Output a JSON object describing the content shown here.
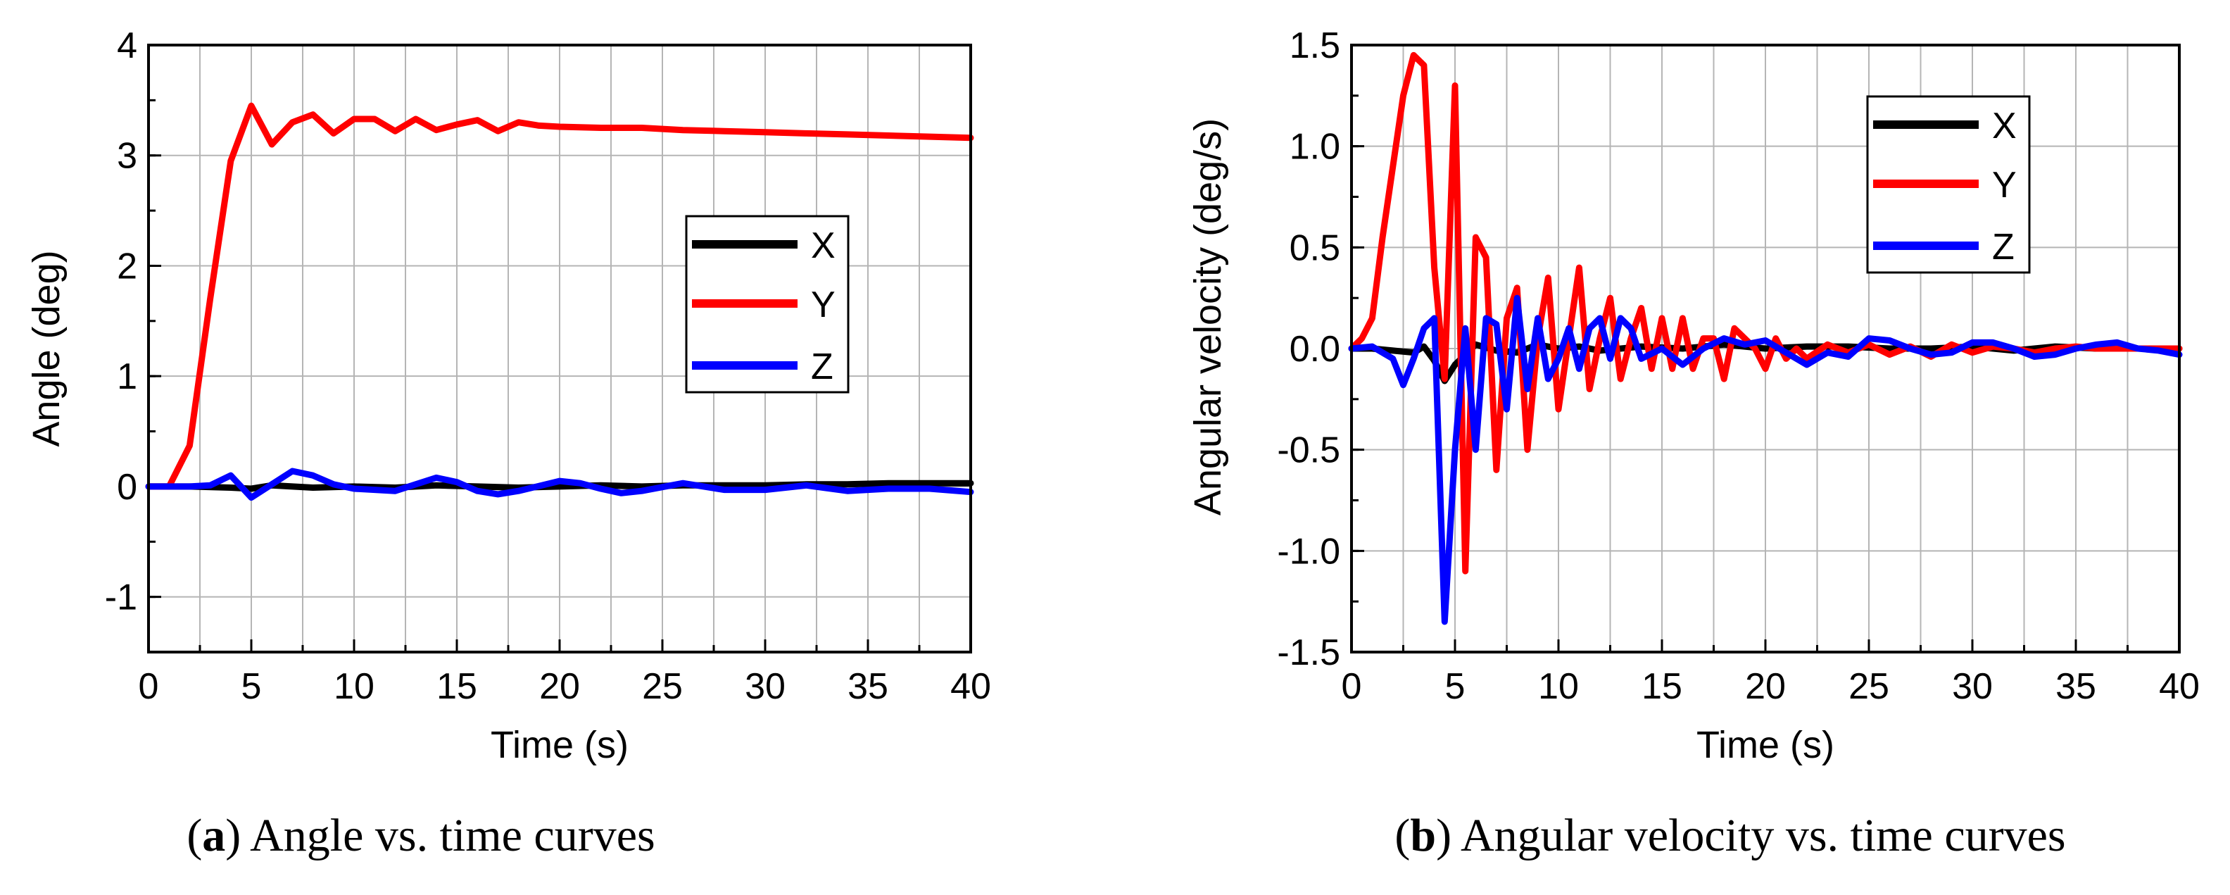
{
  "chart_data": [
    {
      "type": "line",
      "panel_label": "a",
      "caption": "Angle vs. time curves",
      "title": "",
      "xlabel": "Time (s)",
      "ylabel": "Angle (deg)",
      "xlim": [
        0,
        40
      ],
      "ylim": [
        -1.5,
        4
      ],
      "xticks": [
        0,
        5,
        10,
        15,
        20,
        25,
        30,
        35,
        40
      ],
      "xtick_labels": [
        "0",
        "5",
        "10",
        "15",
        "20",
        "25",
        "30",
        "35",
        "40"
      ],
      "yticks": [
        -1,
        0,
        1,
        2,
        3,
        4
      ],
      "ytick_labels": [
        "-1",
        "0",
        "1",
        "2",
        "3",
        "4"
      ],
      "grid": true,
      "legend_position": "center-right",
      "series": [
        {
          "name": "X",
          "color": "#000000",
          "x": [
            0,
            2,
            4,
            5,
            6,
            8,
            10,
            12,
            14,
            16,
            18,
            20,
            22,
            24,
            26,
            28,
            30,
            32,
            34,
            36,
            38,
            40
          ],
          "y": [
            0,
            0,
            -0.01,
            -0.02,
            0.01,
            -0.01,
            0,
            -0.01,
            0.01,
            0,
            -0.01,
            0,
            0.01,
            0,
            0.01,
            0.01,
            0.01,
            0.02,
            0.02,
            0.03,
            0.03,
            0.03
          ]
        },
        {
          "name": "Y",
          "color": "#ff0000",
          "x": [
            0,
            1,
            2,
            3,
            4,
            5,
            6,
            7,
            8,
            9,
            10,
            11,
            12,
            13,
            14,
            15,
            16,
            17,
            18,
            19,
            20,
            22,
            24,
            26,
            28,
            30,
            32,
            34,
            36,
            38,
            40
          ],
          "y": [
            0,
            0,
            0.37,
            1.7,
            2.95,
            3.45,
            3.1,
            3.3,
            3.37,
            3.2,
            3.33,
            3.33,
            3.22,
            3.33,
            3.23,
            3.28,
            3.32,
            3.22,
            3.3,
            3.27,
            3.26,
            3.25,
            3.25,
            3.23,
            3.22,
            3.21,
            3.2,
            3.19,
            3.18,
            3.17,
            3.16
          ]
        },
        {
          "name": "Z",
          "color": "#0000ff",
          "x": [
            0,
            2,
            3,
            4,
            5,
            6,
            7,
            8,
            9,
            10,
            12,
            14,
            15,
            16,
            17,
            18,
            20,
            21,
            22,
            23,
            24,
            26,
            28,
            30,
            32,
            34,
            36,
            38,
            40
          ],
          "y": [
            0,
            0,
            0.01,
            0.1,
            -0.1,
            0.02,
            0.14,
            0.1,
            0.02,
            -0.02,
            -0.04,
            0.08,
            0.04,
            -0.04,
            -0.07,
            -0.04,
            0.05,
            0.03,
            -0.02,
            -0.06,
            -0.04,
            0.03,
            -0.03,
            -0.03,
            0.01,
            -0.04,
            -0.02,
            -0.02,
            -0.05
          ]
        }
      ]
    },
    {
      "type": "line",
      "panel_label": "b",
      "caption": "Angular velocity vs. time curves",
      "title": "",
      "xlabel": "Time (s)",
      "ylabel": "Angular velocity (deg/s)",
      "xlim": [
        0,
        40
      ],
      "ylim": [
        -1.5,
        1.5
      ],
      "xticks": [
        0,
        5,
        10,
        15,
        20,
        25,
        30,
        35,
        40
      ],
      "xtick_labels": [
        "0",
        "5",
        "10",
        "15",
        "20",
        "25",
        "30",
        "35",
        "40"
      ],
      "yticks": [
        -1.5,
        -1.0,
        -0.5,
        0.0,
        0.5,
        1.0,
        1.5
      ],
      "ytick_labels": [
        "-1.5",
        "-1.0",
        "-0.5",
        "0.0",
        "0.5",
        "1.0",
        "1.5"
      ],
      "grid": true,
      "legend_position": "top-right",
      "series": [
        {
          "name": "X",
          "color": "#000000",
          "x": [
            0,
            1,
            2,
            3,
            3.5,
            4,
            4.5,
            5,
            5.5,
            6,
            7,
            8,
            9,
            10,
            11,
            12,
            14,
            16,
            18,
            20,
            22,
            24,
            26,
            28,
            30,
            32,
            34,
            36,
            38,
            40
          ],
          "y": [
            0,
            0,
            -0.01,
            -0.02,
            0.01,
            -0.06,
            -0.16,
            -0.08,
            -0.03,
            0.02,
            -0.01,
            -0.02,
            0.02,
            0,
            0.01,
            -0.01,
            0.01,
            0,
            0.02,
            0,
            0.01,
            0.01,
            0,
            0,
            0.01,
            -0.01,
            0.01,
            0,
            0,
            0
          ]
        },
        {
          "name": "Y",
          "color": "#ff0000",
          "x": [
            0,
            0.5,
            1,
            1.5,
            2,
            2.5,
            3,
            3.5,
            4,
            4.5,
            5,
            5.5,
            6,
            6.5,
            7,
            7.5,
            8,
            8.5,
            9,
            9.5,
            10,
            10.5,
            11,
            11.5,
            12,
            12.5,
            13,
            13.5,
            14,
            14.5,
            15,
            15.5,
            16,
            16.5,
            17,
            17.5,
            18,
            18.5,
            19,
            19.5,
            20,
            20.5,
            21,
            21.5,
            22,
            23,
            24,
            25,
            26,
            27,
            28,
            29,
            30,
            31,
            32,
            33,
            34,
            35,
            36,
            37,
            38,
            39,
            40
          ],
          "y": [
            0,
            0.05,
            0.15,
            0.55,
            0.9,
            1.25,
            1.45,
            1.4,
            0.4,
            -0.15,
            1.3,
            -1.1,
            0.55,
            0.45,
            -0.6,
            0.15,
            0.3,
            -0.5,
            0.05,
            0.35,
            -0.3,
            0.05,
            0.4,
            -0.2,
            0.05,
            0.25,
            -0.15,
            0.05,
            0.2,
            -0.1,
            0.15,
            -0.1,
            0.15,
            -0.1,
            0.05,
            0.05,
            -0.15,
            0.1,
            0.05,
            0,
            -0.1,
            0.05,
            -0.05,
            0,
            -0.05,
            0.02,
            -0.02,
            0.02,
            -0.03,
            0.01,
            -0.04,
            0.02,
            -0.02,
            0.01,
            0,
            -0.02,
            0,
            0.01,
            0,
            0,
            0,
            0,
            0
          ]
        },
        {
          "name": "Z",
          "color": "#0000ff",
          "x": [
            0,
            1,
            2,
            2.5,
            3,
            3.5,
            4,
            4.5,
            5,
            5.5,
            6,
            6.5,
            7,
            7.5,
            8,
            8.5,
            9,
            9.5,
            10,
            10.5,
            11,
            11.5,
            12,
            12.5,
            13,
            13.5,
            14,
            15,
            16,
            17,
            18,
            19,
            20,
            21,
            22,
            23,
            24,
            25,
            26,
            27,
            28,
            29,
            30,
            31,
            32,
            33,
            34,
            35,
            36,
            37,
            38,
            39,
            40
          ],
          "y": [
            0,
            0.01,
            -0.05,
            -0.18,
            -0.05,
            0.1,
            0.15,
            -1.35,
            -0.5,
            0.1,
            -0.5,
            0.15,
            0.12,
            -0.3,
            0.25,
            -0.2,
            0.15,
            -0.15,
            -0.05,
            0.1,
            -0.1,
            0.1,
            0.15,
            -0.05,
            0.15,
            0.1,
            -0.05,
            0,
            -0.08,
            0,
            0.05,
            0.02,
            0.04,
            -0.02,
            -0.08,
            -0.02,
            -0.04,
            0.05,
            0.04,
            0,
            -0.03,
            -0.02,
            0.03,
            0.03,
            0,
            -0.04,
            -0.03,
            0,
            0.02,
            0.03,
            0,
            -0.01,
            -0.03
          ]
        }
      ]
    }
  ]
}
